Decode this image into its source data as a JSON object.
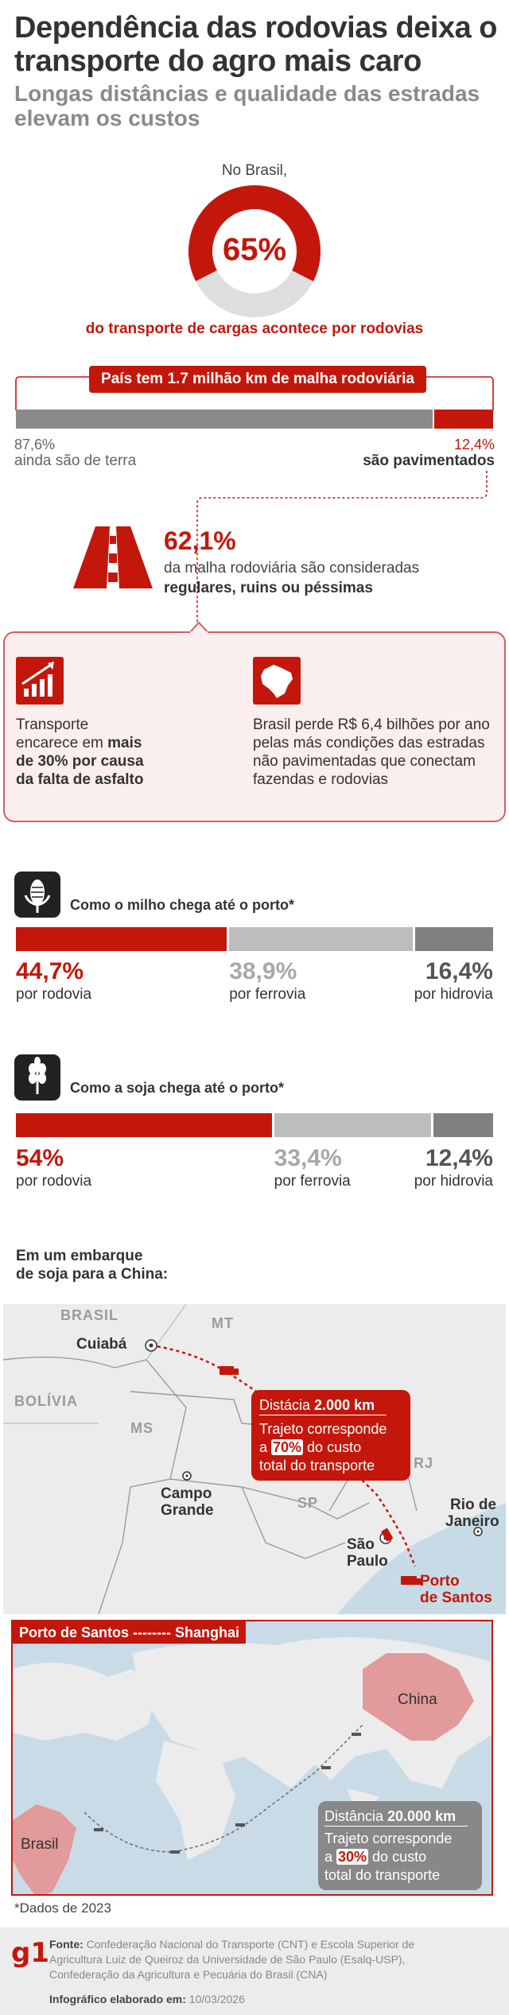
{
  "header": {
    "title": "Dependência das rodovias deixa o transporte do agro mais caro",
    "subtitle": "Longas distâncias e qualidade das estradas elevam os custos"
  },
  "gauge": {
    "intro": "No Brasil,",
    "value_label": "65%",
    "value": 65,
    "caption": "do transporte de cargas acontece por rodovias"
  },
  "network": {
    "banner": "País tem 1.7 milhão km de malha rodoviária",
    "dirt_pct_label": "87,6%",
    "dirt_label": "ainda são de terra",
    "paved_pct_label": "12,4%",
    "paved_label": "são pavimentados",
    "dirt_value": 87.6,
    "paved_value": 12.4
  },
  "quality": {
    "pct": "62,1%",
    "text1": "da malha rodoviária são consideradas",
    "text2": "regulares, ruins ou péssimas"
  },
  "impacts": {
    "left_l1": "Transporte",
    "left_l2a": "encarece em ",
    "left_l2b": "mais",
    "left_l3": "de 30% por causa",
    "left_l4": "da falta de asfalto",
    "right_l1": "Brasil perde R$ 6,4 bilhões por ano",
    "right_l2": "pelas más condições das estradas",
    "right_l3": "não pavimentadas que conectam",
    "right_l4": "fazendas e rodovias"
  },
  "chart_data": [
    {
      "type": "bar",
      "title": "Como o milho chega até o porto*",
      "orientation": "stacked-horizontal",
      "categories": [
        "por rodovia",
        "por ferrovia",
        "por hidrovia"
      ],
      "values": [
        44.7,
        38.9,
        16.4
      ],
      "value_labels": [
        "44,7%",
        "38,9%",
        "16,4%"
      ],
      "colors": [
        "#c4170c",
        "#bdbdbd",
        "#808080"
      ],
      "label_colors": [
        "#c4170c",
        "#a8a8a8",
        "#555555"
      ]
    },
    {
      "type": "bar",
      "title": "Como a soja chega até o porto*",
      "orientation": "stacked-horizontal",
      "categories": [
        "por rodovia",
        "por ferrovia",
        "por hidrovia"
      ],
      "values": [
        54,
        33.4,
        12.4
      ],
      "value_labels": [
        "54%",
        "33,4%",
        "12,4%"
      ],
      "colors": [
        "#c4170c",
        "#bdbdbd",
        "#808080"
      ],
      "label_colors": [
        "#c4170c",
        "#a8a8a8",
        "#555555"
      ]
    }
  ],
  "shipment": {
    "heading_l1": "Em um embarque",
    "heading_l2": "de soja para a China:",
    "map_labels": {
      "brasil": "BRASIL",
      "mt": "MT",
      "bolivia": "BOLÍVIA",
      "ms": "MS",
      "rj": "RJ",
      "sp": "SP",
      "cuiaba": "Cuiabá",
      "campo_l1": "Campo",
      "campo_l2": "Grande",
      "saopaulo_l1": "São",
      "saopaulo_l2": "Paulo",
      "rio_l1": "Rio de",
      "rio_l2": "Janeiro",
      "santos_l1": "Porto",
      "santos_l2": "de Santos"
    },
    "road_callout": {
      "dist_label": "Distácia ",
      "dist_value": "2.000 km",
      "l1": "Trajeto corresponde",
      "l2a": "a ",
      "pct": "70%",
      "l2b": " do custo",
      "l3": "total do transporte"
    },
    "sea_route_title": "Porto de Santos -------- Shanghai",
    "world_labels": {
      "china": "China",
      "brasil": "Brasil"
    },
    "sea_callout": {
      "dist_label": "Distância ",
      "dist_value": "20.000 km",
      "l1": "Trajeto corresponde",
      "l2a": "a ",
      "pct": "30%",
      "l2b": " do custo",
      "l3": "total do transporte"
    },
    "note": "*Dados de 2023"
  },
  "footer": {
    "logo": "g1",
    "source_label": "Fonte:",
    "source_text_l1": " Confederação Nacional do Transporte (CNT) e Escola Superior de",
    "source_text_l2": "Agricultura Luiz de Queiroz da Universidade de São Paulo (Esalq-USP),",
    "source_text_l3": "Confederação da Agricultura e Pecuária do Brasil (CNA)",
    "credit_label": "Infográfico elaborado em:",
    "credit_date": " 10/03/2026"
  },
  "colors": {
    "accent": "#c4170c",
    "gray_light": "#bdbdbd",
    "gray_dark": "#808080",
    "card_bg": "#fbeeee"
  }
}
